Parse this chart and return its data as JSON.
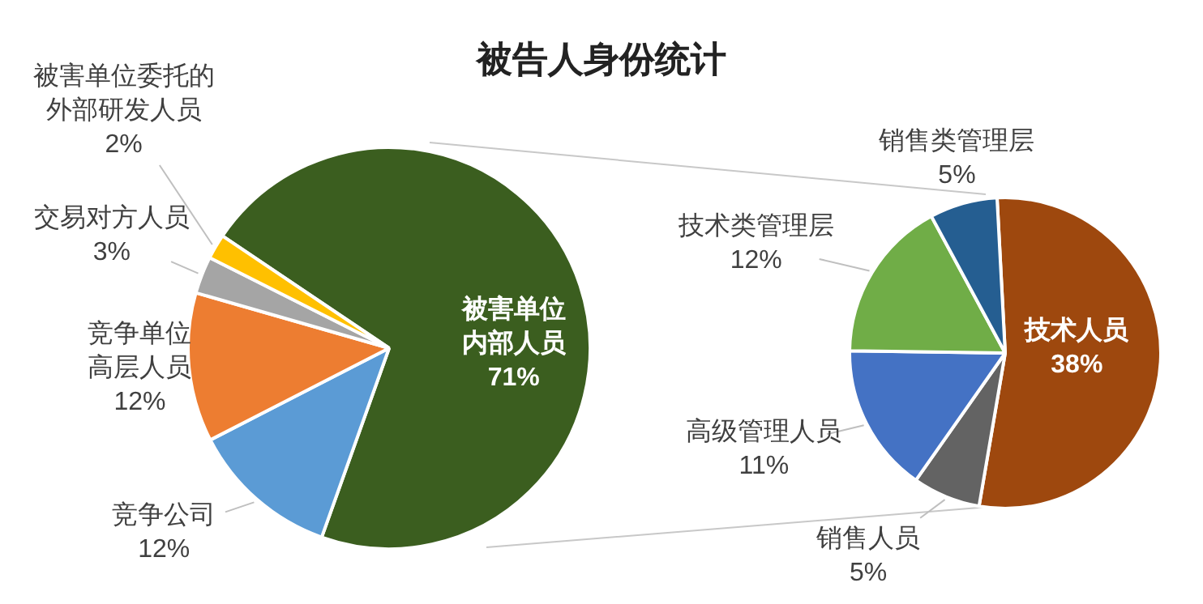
{
  "chart_data": [
    {
      "type": "pie",
      "title": "被告人身份统计",
      "categories": [
        "被害单位内部人员",
        "竞争公司",
        "竞争单位高层人员",
        "交易对方人员",
        "被害单位委托的外部研发人员"
      ],
      "values": [
        71,
        12,
        12,
        3,
        2
      ],
      "colors": [
        "#3b5e1f",
        "#5b9bd5",
        "#ed7d31",
        "#a5a5a5",
        "#ffc000"
      ],
      "value_labels": [
        "71%",
        "12%",
        "12%",
        "3%",
        "2%"
      ]
    },
    {
      "type": "pie",
      "categories": [
        "技术人员",
        "销售人员",
        "高级管理人员",
        "技术类管理层",
        "销售类管理层"
      ],
      "values": [
        38,
        5,
        11,
        12,
        5
      ],
      "colors": [
        "#9e480e",
        "#636363",
        "#4472c4",
        "#70ad47",
        "#255e91"
      ],
      "value_labels": [
        "38%",
        "5%",
        "11%",
        "12%",
        "5%"
      ]
    }
  ]
}
